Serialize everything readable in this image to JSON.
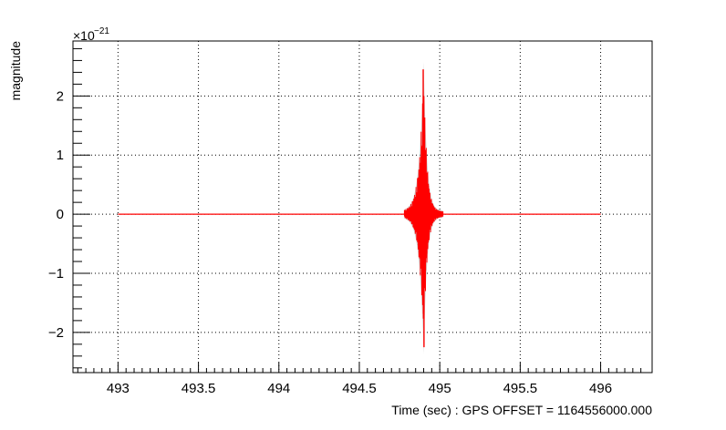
{
  "chart_data": {
    "type": "line",
    "xlabel": "Time (sec) : GPS OFFSET = 1164556000.000",
    "ylabel": "magnitude",
    "y_multiplier_base": "×10",
    "y_multiplier_exponent": "−21",
    "xlim": [
      492.72,
      496.32
    ],
    "ylim": [
      -2.68,
      2.93
    ],
    "x_ticks": [
      493,
      493.5,
      494,
      494.5,
      495,
      495.5,
      496
    ],
    "x_tick_labels": [
      "493",
      "493.5",
      "494",
      "494.5",
      "495",
      "495.5",
      "496"
    ],
    "y_ticks": [
      -2,
      -1,
      0,
      1,
      2
    ],
    "y_tick_labels": [
      "−2",
      "−1",
      "0",
      "1",
      "2"
    ],
    "grid": true,
    "legend": "none",
    "colors": {
      "signal": "#ff0000",
      "envelope": "#aaaaaa"
    },
    "series": [
      {
        "values": {
          "x_start": 493.0,
          "x_end": 496.0,
          "baseline": 0,
          "burst_center": 494.9,
          "burst_window": [
            494.78,
            495.02
          ],
          "max": 2.45,
          "min": -2.25
        }
      }
    ]
  }
}
